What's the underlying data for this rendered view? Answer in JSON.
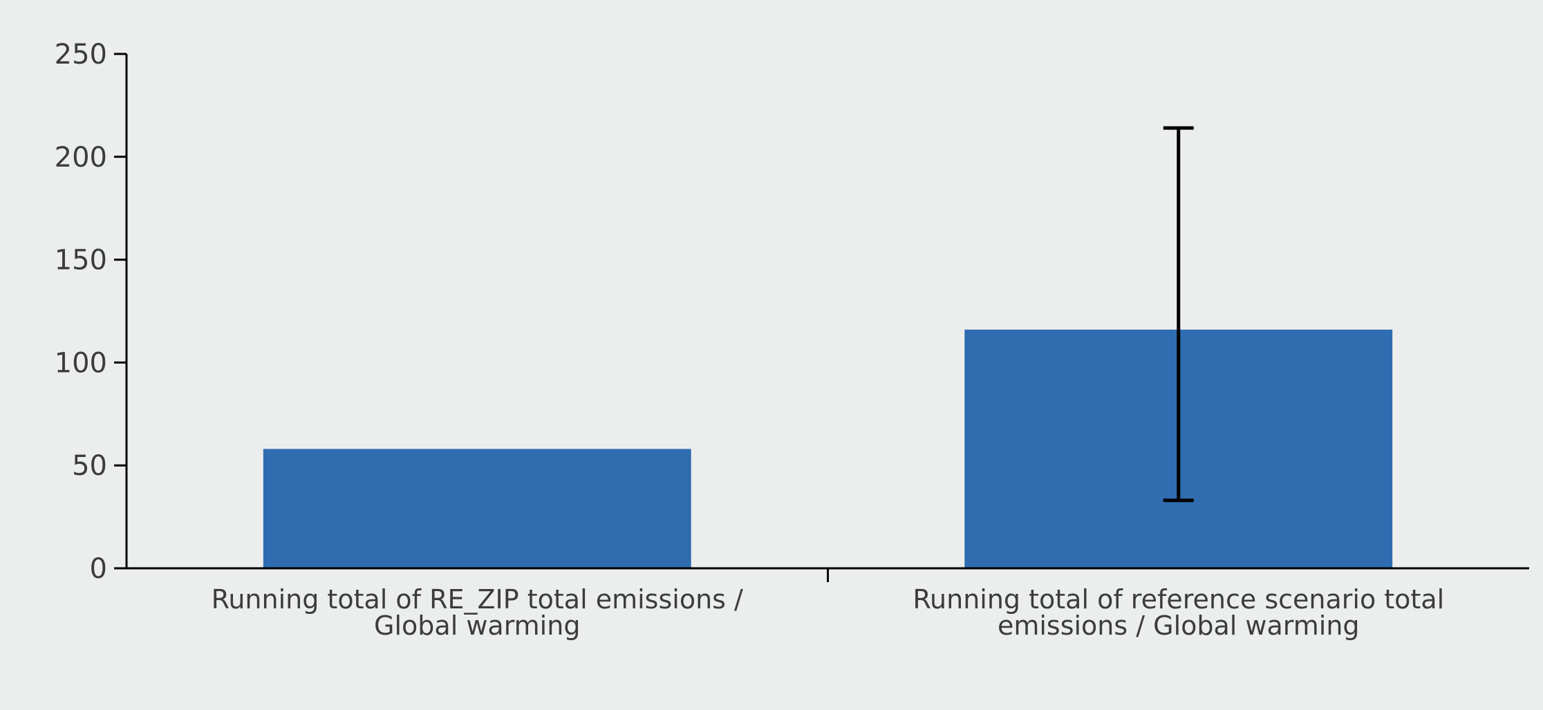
{
  "chart_data": {
    "type": "bar",
    "categories": [
      [
        "Running total of RE_ZIP total emissions /",
        "Global warming"
      ],
      [
        "Running total of reference scenario total",
        "emissions / Global warming"
      ]
    ],
    "values": [
      58,
      116
    ],
    "error_bars": [
      null,
      {
        "low": 33,
        "high": 214
      }
    ],
    "ylim": [
      0,
      250
    ],
    "yticks": [
      0,
      50,
      100,
      150,
      200,
      250
    ],
    "title": "",
    "xlabel": "",
    "ylabel": "",
    "grid": false,
    "bar_color": "#2f6cb0",
    "error_bar_color": "#000000",
    "axis_color": "#000000"
  }
}
